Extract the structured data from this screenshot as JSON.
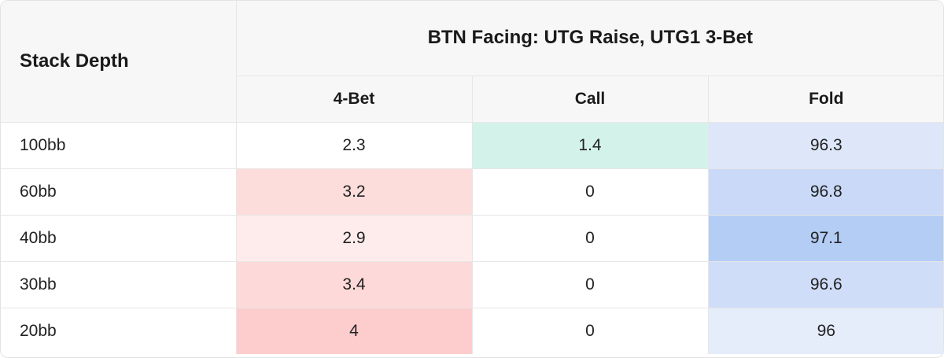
{
  "chart_data": {
    "type": "table",
    "title": "BTN Facing: UTG Raise, UTG1 3-Bet",
    "row_header": "Stack Depth",
    "columns": [
      "4-Bet",
      "Call",
      "Fold"
    ],
    "rows": [
      {
        "label": "100bb",
        "values": [
          "2.3",
          "1.4",
          "96.3"
        ],
        "colors": [
          "#ffffff",
          "#d3f3ea",
          "#dde7f9"
        ]
      },
      {
        "label": "60bb",
        "values": [
          "3.2",
          "0",
          "96.8"
        ],
        "colors": [
          "#fddcdc",
          "#ffffff",
          "#c9d9f7"
        ]
      },
      {
        "label": "40bb",
        "values": [
          "2.9",
          "0",
          "97.1"
        ],
        "colors": [
          "#feecec",
          "#ffffff",
          "#b3cdf5"
        ]
      },
      {
        "label": "30bb",
        "values": [
          "3.4",
          "0",
          "96.6"
        ],
        "colors": [
          "#fdd9d9",
          "#ffffff",
          "#d0ddf8"
        ]
      },
      {
        "label": "20bb",
        "values": [
          "4",
          "0",
          "96"
        ],
        "colors": [
          "#fdcdcd",
          "#ffffff",
          "#e5edfb"
        ]
      }
    ]
  }
}
